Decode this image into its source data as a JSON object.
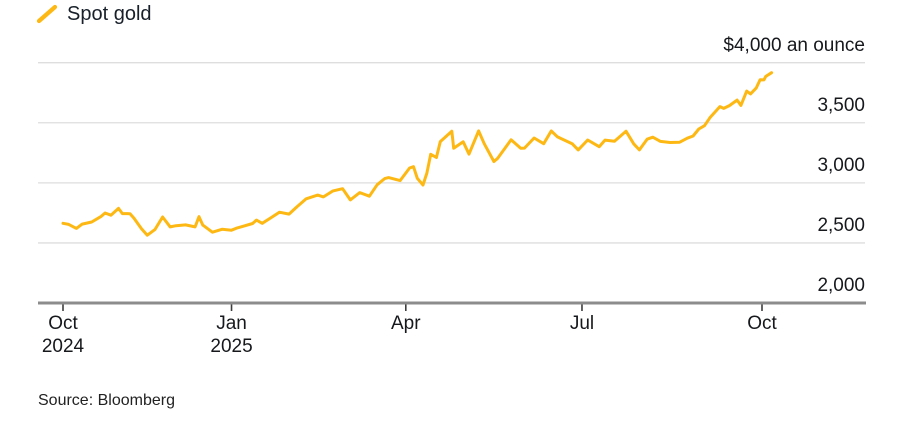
{
  "legend": {
    "label": "Spot gold"
  },
  "source": {
    "text": "Source: Bloomberg"
  },
  "colors": {
    "line": "#FDB813",
    "grid": "#dedede",
    "axis": "#8c8c8c",
    "tick": "#3d3d3d",
    "text": "#16181c",
    "background": "#ffffff"
  },
  "chart_data": {
    "type": "line",
    "title": "Spot gold",
    "legend_position": "top-left",
    "grid": true,
    "y_axis": {
      "side": "right",
      "min": 2000,
      "max": 4000,
      "ticks": [
        {
          "value": 4000,
          "label": "$4,000 an ounce"
        },
        {
          "value": 3500,
          "label": "3,500"
        },
        {
          "value": 3000,
          "label": "3,000"
        },
        {
          "value": 2500,
          "label": "2,500"
        },
        {
          "value": 2000,
          "label": "2,000"
        }
      ]
    },
    "x_axis": {
      "ticks": [
        {
          "day": 0,
          "label": "Oct",
          "sublabel": "2024"
        },
        {
          "day": 88,
          "label": "Jan",
          "sublabel": "2025"
        },
        {
          "day": 179,
          "label": "Apr",
          "sublabel": ""
        },
        {
          "day": 271,
          "label": "Jul",
          "sublabel": ""
        },
        {
          "day": 365,
          "label": "Oct",
          "sublabel": ""
        }
      ]
    },
    "series": [
      {
        "name": "Spot gold",
        "color": "#FDB813",
        "points": [
          [
            0,
            2663
          ],
          [
            3,
            2654
          ],
          [
            7,
            2621
          ],
          [
            10,
            2657
          ],
          [
            15,
            2674
          ],
          [
            20,
            2722
          ],
          [
            22,
            2749
          ],
          [
            25,
            2731
          ],
          [
            29,
            2787
          ],
          [
            31,
            2744
          ],
          [
            35,
            2743
          ],
          [
            37,
            2707
          ],
          [
            41,
            2618
          ],
          [
            44,
            2564
          ],
          [
            48,
            2611
          ],
          [
            52,
            2716
          ],
          [
            56,
            2633
          ],
          [
            59,
            2643
          ],
          [
            64,
            2650
          ],
          [
            69,
            2633
          ],
          [
            71,
            2718
          ],
          [
            73,
            2648
          ],
          [
            78,
            2589
          ],
          [
            83,
            2613
          ],
          [
            88,
            2606
          ],
          [
            91,
            2625
          ],
          [
            94,
            2638
          ],
          [
            99,
            2662
          ],
          [
            101,
            2690
          ],
          [
            104,
            2663
          ],
          [
            108,
            2703
          ],
          [
            113,
            2756
          ],
          [
            118,
            2740
          ],
          [
            122,
            2798
          ],
          [
            127,
            2867
          ],
          [
            133,
            2898
          ],
          [
            136,
            2883
          ],
          [
            141,
            2933
          ],
          [
            146,
            2951
          ],
          [
            150,
            2858
          ],
          [
            155,
            2919
          ],
          [
            160,
            2889
          ],
          [
            164,
            2984
          ],
          [
            168,
            3035
          ],
          [
            170,
            3044
          ],
          [
            176,
            3019
          ],
          [
            181,
            3124
          ],
          [
            183,
            3134
          ],
          [
            185,
            3038
          ],
          [
            188,
            2982
          ],
          [
            190,
            3082
          ],
          [
            192,
            3238
          ],
          [
            195,
            3211
          ],
          [
            197,
            3343
          ],
          [
            203,
            3430
          ],
          [
            204,
            3288
          ],
          [
            209,
            3342
          ],
          [
            212,
            3239
          ],
          [
            217,
            3432
          ],
          [
            220,
            3325
          ],
          [
            225,
            3178
          ],
          [
            227,
            3204
          ],
          [
            232,
            3315
          ],
          [
            234,
            3358
          ],
          [
            239,
            3288
          ],
          [
            241,
            3289
          ],
          [
            246,
            3373
          ],
          [
            251,
            3326
          ],
          [
            255,
            3432
          ],
          [
            258,
            3385
          ],
          [
            260,
            3369
          ],
          [
            266,
            3324
          ],
          [
            269,
            3274
          ],
          [
            274,
            3357
          ],
          [
            280,
            3301
          ],
          [
            283,
            3356
          ],
          [
            288,
            3347
          ],
          [
            294,
            3430
          ],
          [
            298,
            3325
          ],
          [
            301,
            3274
          ],
          [
            305,
            3363
          ],
          [
            308,
            3380
          ],
          [
            312,
            3345
          ],
          [
            317,
            3336
          ],
          [
            322,
            3338
          ],
          [
            326,
            3372
          ],
          [
            329,
            3390
          ],
          [
            332,
            3448
          ],
          [
            335,
            3476
          ],
          [
            338,
            3546
          ],
          [
            343,
            3635
          ],
          [
            345,
            3620
          ],
          [
            348,
            3643
          ],
          [
            352,
            3689
          ],
          [
            354,
            3645
          ],
          [
            357,
            3764
          ],
          [
            359,
            3740
          ],
          [
            362,
            3790
          ],
          [
            364,
            3858
          ],
          [
            366,
            3857
          ],
          [
            367,
            3886
          ],
          [
            370,
            3917
          ]
        ]
      }
    ]
  }
}
